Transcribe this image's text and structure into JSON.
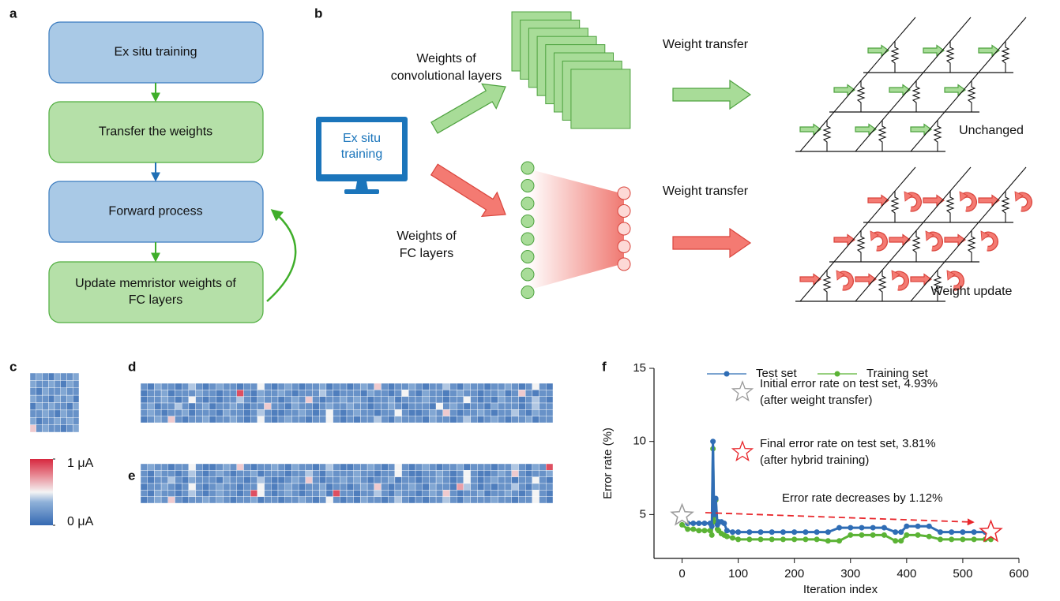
{
  "panel_labels": [
    "a",
    "b",
    "c",
    "d",
    "e",
    "f"
  ],
  "flowchart": {
    "nodes": [
      {
        "lines": [
          "Ex situ training"
        ]
      },
      {
        "lines": [
          "Transfer the weights"
        ]
      },
      {
        "lines": [
          "Forward process"
        ]
      },
      {
        "lines": [
          "Update memristor weights of",
          "FC layers"
        ]
      }
    ]
  },
  "diagram": {
    "computer_label": [
      "Ex situ",
      "training"
    ],
    "conv_label": [
      "Weights of",
      "convolutional layers"
    ],
    "fc_label": [
      "Weights of",
      "FC layers"
    ],
    "transfer_top": "Weight transfer",
    "transfer_bottom": "Weight transfer",
    "unchanged": "Unchanged",
    "update": "Weight update"
  },
  "colorbar": {
    "ticks": [
      {
        "value": 0,
        "label": "0 μA"
      },
      {
        "value": 1,
        "label": "1 μA"
      }
    ]
  },
  "heatmaps": {
    "c": [
      [
        0.2,
        0.3,
        0.2,
        0.1,
        0.3,
        0.2,
        0.2,
        0.3
      ],
      [
        0.3,
        0.2,
        0.2,
        0.3,
        0.2,
        0.1,
        0.3,
        0.2
      ],
      [
        0.2,
        0.1,
        0.3,
        0.2,
        0.2,
        0.3,
        0.2,
        0.2
      ],
      [
        0.3,
        0.2,
        0.2,
        0.1,
        0.3,
        0.2,
        0.3,
        0.1
      ],
      [
        0.1,
        0.3,
        0.2,
        0.3,
        0.2,
        0.2,
        0.1,
        0.3
      ],
      [
        0.2,
        0.2,
        0.3,
        0.2,
        0.1,
        0.3,
        0.2,
        0.2
      ],
      [
        0.3,
        0.1,
        0.2,
        0.2,
        0.3,
        0.2,
        0.3,
        0.2
      ],
      [
        0.6,
        0.2,
        0.3,
        0.2,
        0.2,
        0.1,
        0.2,
        0.3
      ]
    ],
    "d": [
      [
        0.2,
        0.1,
        0.3,
        0.2,
        0.2,
        0.1,
        0.2,
        0.4,
        0.2,
        0.1,
        0.2,
        0.3,
        0.2,
        0.2,
        0.1,
        0.2,
        0.2,
        0.5,
        0.2,
        0.1,
        0.2,
        0.3,
        0.2,
        0.1,
        0.2,
        0.2,
        0.3,
        0.1,
        0.2,
        0.2,
        0.1,
        0.2,
        0.3,
        0.2,
        0.6,
        0.2,
        0.1,
        0.2,
        0.2,
        0.3,
        0.2,
        0.1,
        0.2,
        0.2,
        0.4,
        0.2,
        0.1,
        0.3,
        0.2,
        0.2,
        0.1,
        0.2,
        0.2,
        0.3,
        0.2,
        0.1,
        0.2,
        0.5,
        0.2,
        0.1
      ],
      [
        0.1,
        0.2,
        0.2,
        0.3,
        0.1,
        0.2,
        0.2,
        0.2,
        0.3,
        0.2,
        0.2,
        0.1,
        0.2,
        0.2,
        0.9,
        0.2,
        0.1,
        0.3,
        0.2,
        0.2,
        0.3,
        0.2,
        0.1,
        0.2,
        0.2,
        0.2,
        0.4,
        0.2,
        0.1,
        0.2,
        0.2,
        0.2,
        0.1,
        0.3,
        0.2,
        0.2,
        0.1,
        0.2,
        0.5,
        0.2,
        0.1,
        0.3,
        0.2,
        0.2,
        0.1,
        0.2,
        0.3,
        0.2,
        0.2,
        0.1,
        0.2,
        0.2,
        0.3,
        0.1,
        0.2,
        0.6,
        0.2,
        0.1,
        0.2,
        0.2
      ],
      [
        0.1,
        0.2,
        0.2,
        0.3,
        0.2,
        0.1,
        0.2,
        0.5,
        0.2,
        0.1,
        0.2,
        0.1,
        0.2,
        0.2,
        0.4,
        0.2,
        0.1,
        0.3,
        0.2,
        0.2,
        0.1,
        0.2,
        0.3,
        0.2,
        0.6,
        0.2,
        0.1,
        0.2,
        0.2,
        0.3,
        0.2,
        0.3,
        0.2,
        0.1,
        0.2,
        0.2,
        0.3,
        0.1,
        0.2,
        0.2,
        0.2,
        0.3,
        0.2,
        0.2,
        0.1,
        0.2,
        0.2,
        0.5,
        0.2,
        0.1,
        0.2,
        0.1,
        0.3,
        0.2,
        0.2,
        0.1,
        0.2,
        0.4,
        0.2,
        0.1
      ],
      [
        0.2,
        0.3,
        0.1,
        0.2,
        0.2,
        0.4,
        0.2,
        0.1,
        0.2,
        0.3,
        0.1,
        0.2,
        0.2,
        0.3,
        0.2,
        0.1,
        0.2,
        0.2,
        0.6,
        0.2,
        0.2,
        0.1,
        0.3,
        0.2,
        0.2,
        0.1,
        0.2,
        0.3,
        0.2,
        0.2,
        0.3,
        0.2,
        0.2,
        0.1,
        0.2,
        0.2,
        0.3,
        0.2,
        0.1,
        0.2,
        0.2,
        0.2,
        0.1,
        0.5,
        0.2,
        0.3,
        0.2,
        0.1,
        0.2,
        0.2,
        0.1,
        0.3,
        0.2,
        0.2,
        0.2,
        0.1,
        0.2,
        0.4,
        0.2,
        0.2
      ],
      [
        0.2,
        0.3,
        0.2,
        0.1,
        0.2,
        0.2,
        0.3,
        0.1,
        0.2,
        0.2,
        0.2,
        0.1,
        0.3,
        0.2,
        0.2,
        0.1,
        0.2,
        0.4,
        0.2,
        0.1,
        0.1,
        0.2,
        0.2,
        0.3,
        0.2,
        0.1,
        0.2,
        0.5,
        0.2,
        0.1,
        0.2,
        0.3,
        0.2,
        0.2,
        0.1,
        0.2,
        0.2,
        0.5,
        0.2,
        0.1,
        0.1,
        0.2,
        0.3,
        0.2,
        0.6,
        0.2,
        0.1,
        0.2,
        0.2,
        0.3,
        0.2,
        0.1,
        0.2,
        0.2,
        0.4,
        0.2,
        0.1,
        0.3,
        0.2,
        0.2
      ],
      [
        0.1,
        0.2,
        0.3,
        0.2,
        0.6,
        0.2,
        0.1,
        0.2,
        0.2,
        0.3,
        0.1,
        0.2,
        0.2,
        0.3,
        0.2,
        0.1,
        0.2,
        0.5,
        0.2,
        0.1,
        0.2,
        0.3,
        0.2,
        0.2,
        0.1,
        0.2,
        0.2,
        0.5,
        0.2,
        0.1,
        0.2,
        0.1,
        0.2,
        0.2,
        0.4,
        0.2,
        0.1,
        0.3,
        0.2,
        0.2,
        0.2,
        0.1,
        0.3,
        0.2,
        0.2,
        0.1,
        0.2,
        0.4,
        0.2,
        0.1,
        0.2,
        0.3,
        0.2,
        0.1,
        0.2,
        0.2,
        0.3,
        0.1,
        0.2,
        0.2
      ]
    ],
    "e": [
      [
        0.2,
        0.3,
        0.2,
        0.2,
        0.1,
        0.2,
        0.2,
        0.5,
        0.2,
        0.1,
        0.1,
        0.2,
        0.3,
        0.2,
        0.6,
        0.2,
        0.1,
        0.2,
        0.2,
        0.3,
        0.2,
        0.1,
        0.3,
        0.2,
        0.2,
        0.1,
        0.2,
        0.4,
        0.2,
        0.1,
        0.1,
        0.2,
        0.2,
        0.3,
        0.2,
        0.1,
        0.2,
        0.5,
        0.2,
        0.1,
        0.2,
        0.3,
        0.2,
        0.1,
        0.2,
        0.2,
        0.3,
        0.1,
        0.2,
        0.2,
        0.2,
        0.1,
        0.2,
        0.2,
        0.4,
        0.2,
        0.1,
        0.3,
        0.2,
        0.9
      ],
      [
        0.2,
        0.1,
        0.3,
        0.2,
        0.2,
        0.1,
        0.2,
        0.4,
        0.2,
        0.1,
        0.2,
        0.3,
        0.2,
        0.1,
        0.2,
        0.2,
        0.3,
        0.1,
        0.2,
        0.2,
        0.2,
        0.1,
        0.2,
        0.2,
        0.4,
        0.2,
        0.1,
        0.3,
        0.2,
        0.2,
        0.2,
        0.3,
        0.2,
        0.2,
        0.1,
        0.2,
        0.2,
        0.5,
        0.2,
        0.1,
        0.1,
        0.2,
        0.2,
        0.3,
        0.2,
        0.1,
        0.2,
        0.5,
        0.2,
        0.1,
        0.1,
        0.2,
        0.3,
        0.2,
        0.6,
        0.2,
        0.1,
        0.2,
        0.2,
        0.3
      ],
      [
        0.2,
        0.1,
        0.2,
        0.2,
        0.4,
        0.2,
        0.1,
        0.3,
        0.2,
        0.2,
        0.2,
        0.1,
        0.3,
        0.2,
        0.2,
        0.1,
        0.2,
        0.4,
        0.2,
        0.1,
        0.1,
        0.2,
        0.3,
        0.2,
        0.6,
        0.2,
        0.1,
        0.2,
        0.2,
        0.3,
        0.2,
        0.3,
        0.2,
        0.1,
        0.2,
        0.2,
        0.3,
        0.1,
        0.2,
        0.2,
        0.1,
        0.2,
        0.2,
        0.3,
        0.2,
        0.1,
        0.2,
        0.5,
        0.2,
        0.1,
        0.2,
        0.3,
        0.2,
        0.2,
        0.1,
        0.2,
        0.2,
        0.5,
        0.2,
        0.1
      ],
      [
        0.1,
        0.2,
        0.2,
        0.3,
        0.2,
        0.1,
        0.2,
        0.5,
        0.2,
        0.1,
        0.2,
        0.3,
        0.2,
        0.2,
        0.1,
        0.2,
        0.2,
        0.5,
        0.2,
        0.1,
        0.2,
        0.3,
        0.2,
        0.1,
        0.2,
        0.2,
        0.3,
        0.1,
        0.2,
        0.2,
        0.1,
        0.2,
        0.3,
        0.2,
        0.6,
        0.2,
        0.1,
        0.2,
        0.2,
        0.3,
        0.2,
        0.1,
        0.3,
        0.2,
        0.2,
        0.1,
        0.7,
        0.4,
        0.2,
        0.1,
        0.2,
        0.1,
        0.2,
        0.2,
        0.4,
        0.2,
        0.1,
        0.3,
        0.2,
        0.2
      ],
      [
        0.2,
        0.1,
        0.3,
        0.2,
        0.2,
        0.1,
        0.2,
        0.4,
        0.2,
        0.1,
        0.2,
        0.3,
        0.2,
        0.2,
        0.1,
        0.2,
        0.9,
        0.5,
        0.2,
        0.1,
        0.2,
        0.3,
        0.2,
        0.1,
        0.2,
        0.2,
        0.3,
        0.1,
        0.9,
        0.2,
        0.2,
        0.1,
        0.2,
        0.2,
        0.4,
        0.2,
        0.1,
        0.3,
        0.2,
        0.2,
        0.1,
        0.2,
        0.3,
        0.2,
        0.6,
        0.2,
        0.1,
        0.2,
        0.2,
        0.3,
        0.1,
        0.2,
        0.2,
        0.3,
        0.2,
        0.1,
        0.2,
        0.5,
        0.2,
        0.1
      ],
      [
        0.1,
        0.2,
        0.3,
        0.2,
        0.6,
        0.2,
        0.1,
        0.2,
        0.2,
        0.3,
        0.2,
        0.3,
        0.2,
        0.1,
        0.2,
        0.2,
        0.3,
        0.1,
        0.2,
        0.2,
        0.1,
        0.2,
        0.2,
        0.3,
        0.2,
        0.1,
        0.2,
        0.5,
        0.2,
        0.1,
        0.2,
        0.1,
        0.3,
        0.2,
        0.2,
        0.1,
        0.2,
        0.4,
        0.2,
        0.1,
        0.2,
        0.1,
        0.2,
        0.2,
        0.4,
        0.2,
        0.1,
        0.3,
        0.2,
        0.2,
        0.2,
        0.3,
        0.2,
        0.2,
        0.1,
        0.2,
        0.2,
        0.5,
        0.2,
        0.1
      ]
    ]
  },
  "chart_data": {
    "type": "line",
    "xlabel": "Iteration index",
    "ylabel": "Error rate (%)",
    "x": [
      0,
      10,
      20,
      30,
      40,
      50,
      53,
      55,
      57,
      60,
      63,
      65,
      70,
      75,
      80,
      90,
      100,
      120,
      140,
      160,
      180,
      200,
      220,
      240,
      260,
      280,
      300,
      320,
      340,
      360,
      380,
      390,
      400,
      420,
      440,
      460,
      480,
      500,
      520,
      540,
      550
    ],
    "series": [
      {
        "name": "Test set",
        "color": "#2f6db5",
        "values": [
          4.93,
          4.4,
          4.4,
          4.4,
          4.4,
          4.4,
          4.2,
          10.0,
          5.0,
          6.1,
          4.3,
          4.5,
          4.5,
          4.4,
          3.9,
          3.8,
          3.8,
          3.8,
          3.8,
          3.8,
          3.8,
          3.8,
          3.8,
          3.8,
          3.8,
          4.1,
          4.1,
          4.1,
          4.1,
          4.1,
          3.8,
          3.8,
          4.2,
          4.2,
          4.2,
          3.8,
          3.8,
          3.8,
          3.8,
          3.8,
          3.81
        ]
      },
      {
        "name": "Training set",
        "color": "#5bb335",
        "values": [
          4.3,
          4.0,
          4.0,
          3.9,
          3.9,
          3.9,
          3.6,
          9.5,
          4.5,
          6.0,
          4.0,
          3.9,
          3.7,
          3.6,
          3.5,
          3.4,
          3.3,
          3.3,
          3.3,
          3.3,
          3.3,
          3.3,
          3.3,
          3.3,
          3.2,
          3.2,
          3.6,
          3.6,
          3.6,
          3.6,
          3.2,
          3.2,
          3.6,
          3.6,
          3.5,
          3.3,
          3.3,
          3.3,
          3.3,
          3.3,
          3.3
        ]
      }
    ],
    "xlim": [
      -50,
      600
    ],
    "ylim": [
      2,
      15
    ],
    "xticks": [
      0,
      100,
      200,
      300,
      400,
      500,
      600
    ],
    "yticks": [
      5,
      10,
      15
    ],
    "legend": "top",
    "points": [
      {
        "x": 0,
        "y": 4.93,
        "color": "#9a9a9a",
        "label": [
          "Initial error rate on test set, 4.93%",
          "(after weight transfer)"
        ]
      },
      {
        "x": 550,
        "y": 3.81,
        "color": "#e8262b",
        "label": [
          "Final error rate on test set, 3.81%",
          "(after hybrid training)"
        ]
      }
    ],
    "annotation": "Error rate decreases by 1.12%"
  }
}
